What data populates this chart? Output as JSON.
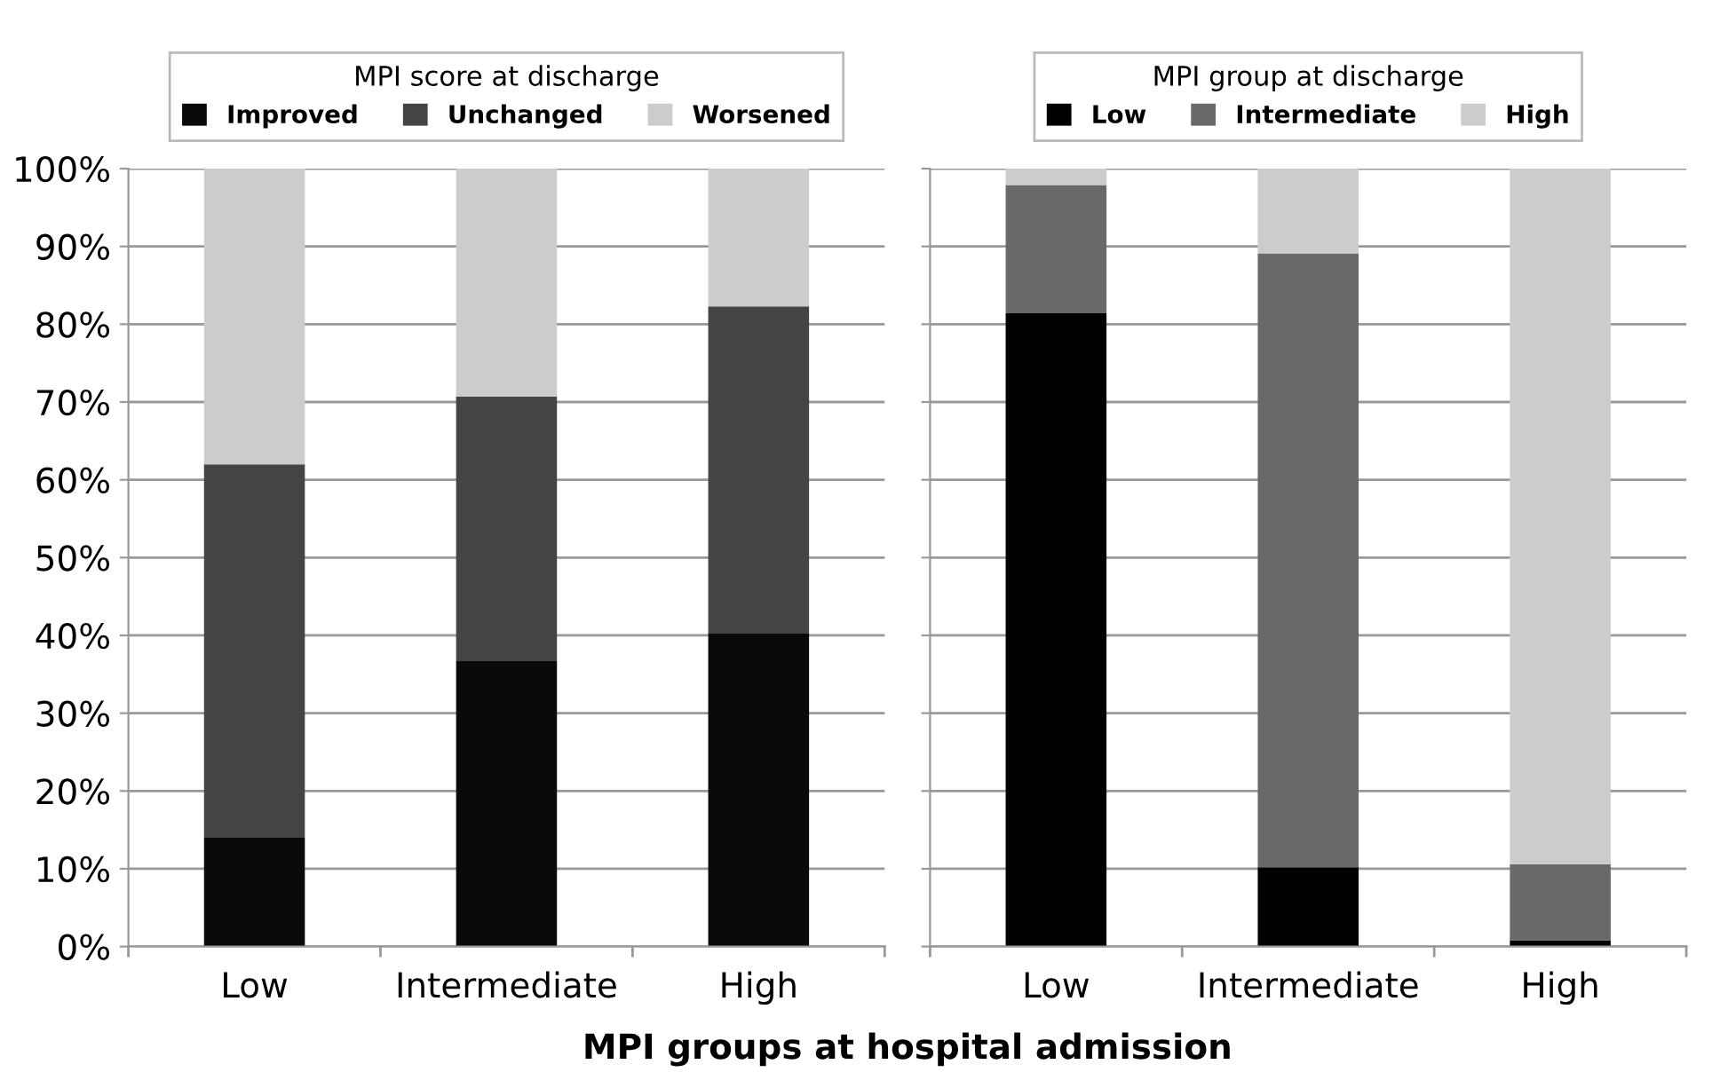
{
  "chart_data": [
    {
      "type": "bar",
      "stacked": true,
      "categories": [
        "Low",
        "Intermediate",
        "High"
      ],
      "legend_title": "MPI score at discharge",
      "xlabel": "MPI groups at hospital admission",
      "series": [
        {
          "name": "Improved",
          "color": "#0a0a0a",
          "values": [
            14,
            36.7,
            40.3
          ]
        },
        {
          "name": "Unchanged",
          "color": "#444444",
          "values": [
            48,
            34,
            42
          ]
        },
        {
          "name": "Worsened",
          "color": "#cccccc",
          "values": [
            38,
            29.3,
            17.7
          ]
        }
      ],
      "ylim": [
        0,
        100
      ],
      "yticks": [
        {
          "value": 0,
          "label": "0%"
        },
        {
          "value": 10,
          "label": "10%"
        },
        {
          "value": 20,
          "label": "20%"
        },
        {
          "value": 30,
          "label": "30%"
        },
        {
          "value": 40,
          "label": "40%"
        },
        {
          "value": 50,
          "label": "50%"
        },
        {
          "value": 60,
          "label": "60%"
        },
        {
          "value": 70,
          "label": "70%"
        },
        {
          "value": 80,
          "label": "80%"
        },
        {
          "value": 90,
          "label": "90%"
        },
        {
          "value": 100,
          "label": "100%"
        }
      ],
      "grid": "y",
      "legend": "top"
    },
    {
      "type": "bar",
      "stacked": true,
      "categories": [
        "Low",
        "Intermediate",
        "High"
      ],
      "legend_title": "MPI group at discharge",
      "series": [
        {
          "name": "Low",
          "color": "#000000",
          "values": [
            81.4,
            10.2,
            0.8
          ]
        },
        {
          "name": "Intermediate",
          "color": "#696969",
          "values": [
            16.5,
            78.9,
            9.8
          ]
        },
        {
          "name": "High",
          "color": "#cccccc",
          "values": [
            2.1,
            10.9,
            89.4
          ]
        }
      ],
      "ylim": [
        0,
        100
      ],
      "yticks": [
        {
          "value": 0,
          "label": null
        },
        {
          "value": 10,
          "label": null
        },
        {
          "value": 20,
          "label": null
        },
        {
          "value": 30,
          "label": null
        },
        {
          "value": 40,
          "label": null
        },
        {
          "value": 50,
          "label": null
        },
        {
          "value": 60,
          "label": null
        },
        {
          "value": 70,
          "label": null
        },
        {
          "value": 80,
          "label": null
        },
        {
          "value": 90,
          "label": null
        },
        {
          "value": 100,
          "label": null
        }
      ],
      "grid": "y",
      "legend": "top",
      "tick_labels": "x"
    }
  ]
}
